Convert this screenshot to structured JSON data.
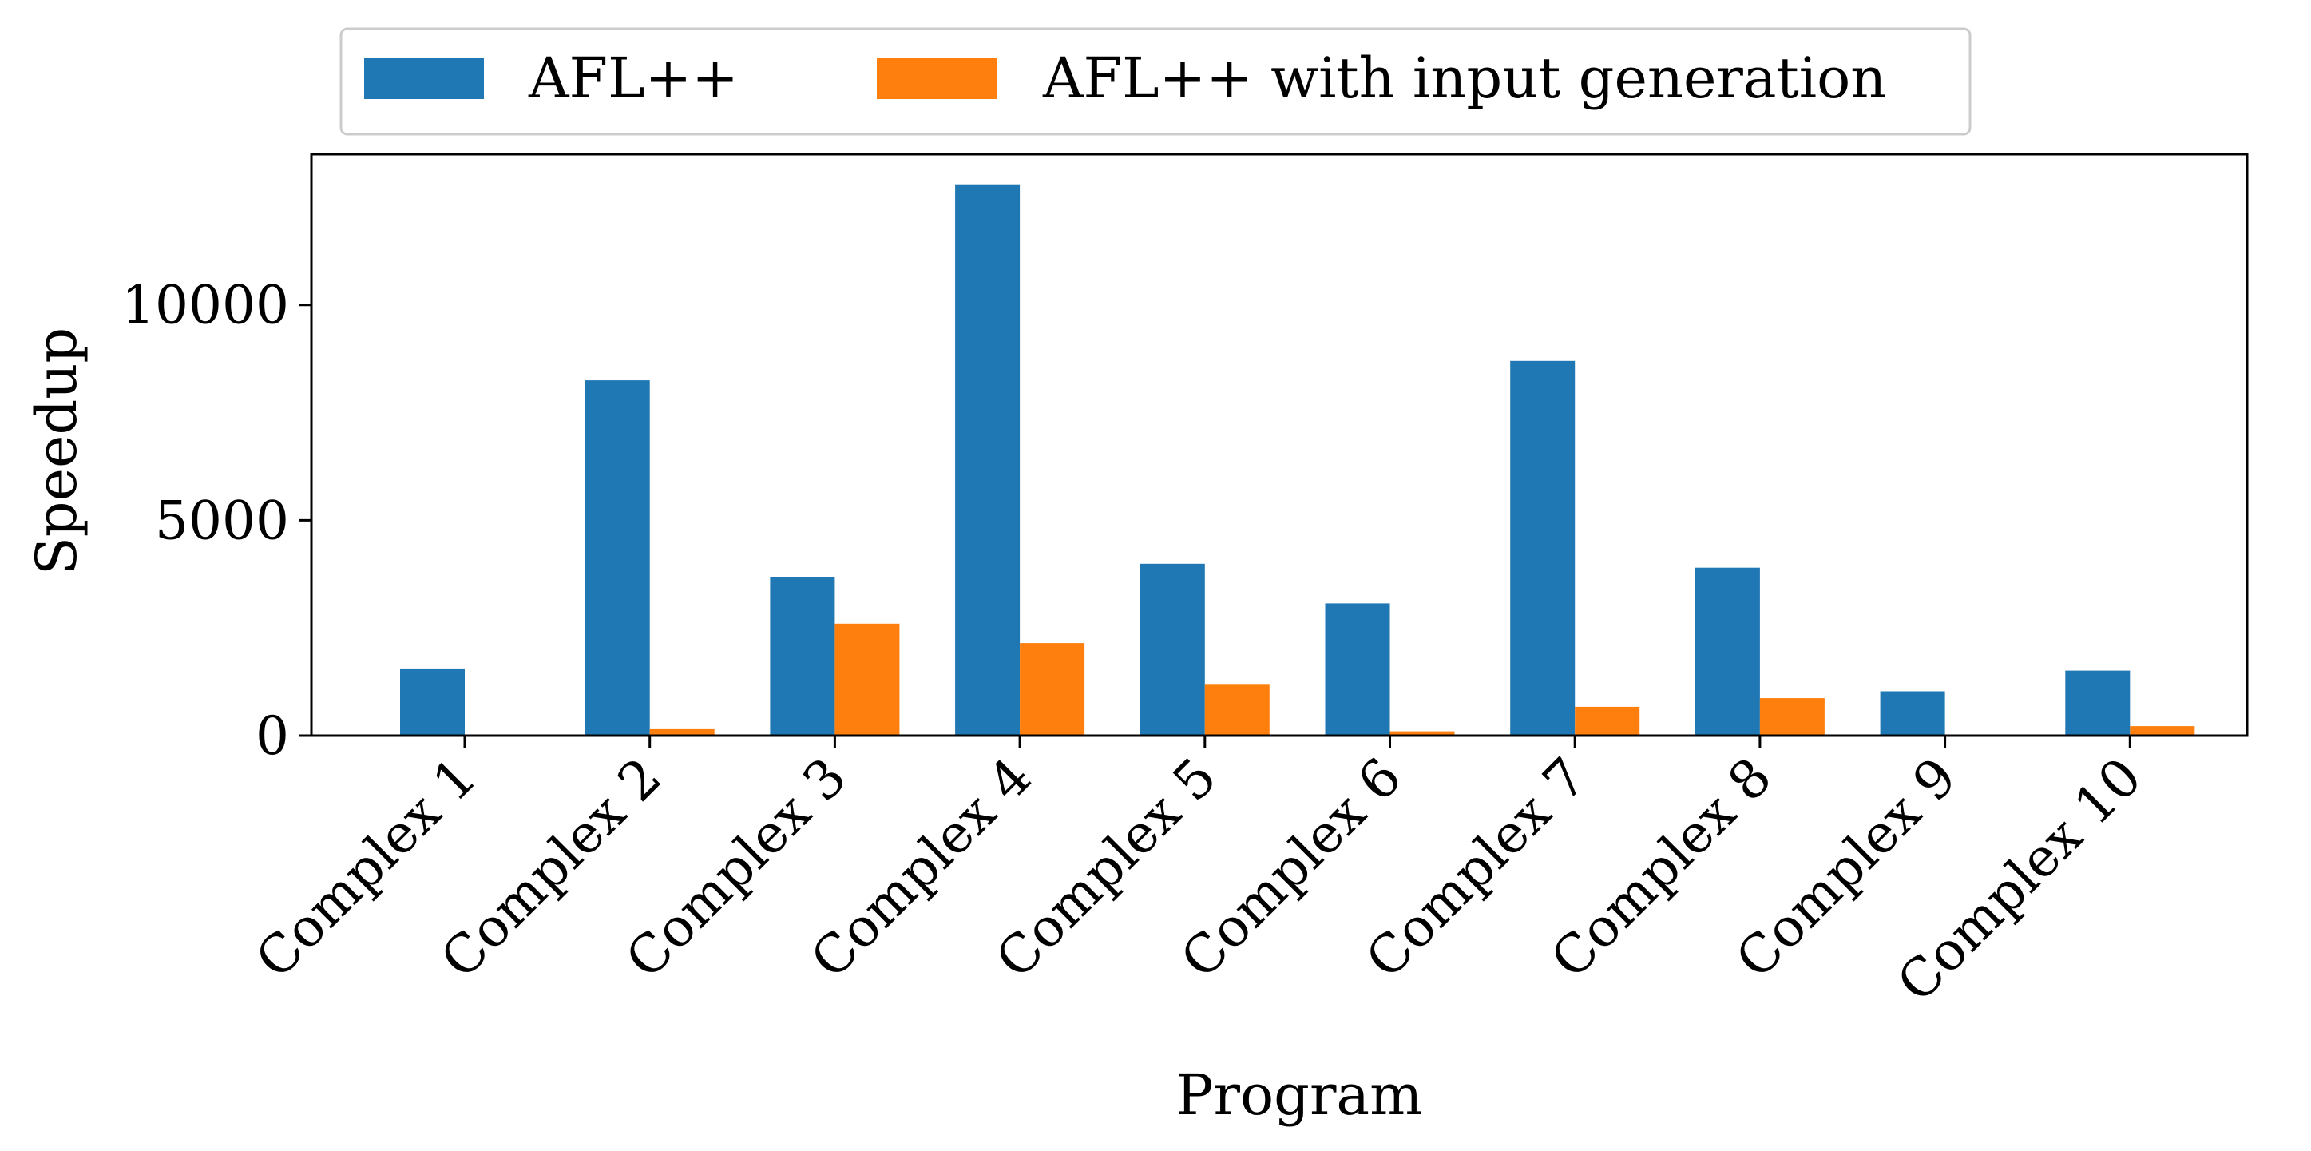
{
  "chart_data": {
    "type": "bar",
    "title": "",
    "xlabel": "Program",
    "ylabel": "Speedup",
    "categories": [
      "Complex 1",
      "Complex 2",
      "Complex 3",
      "Complex 4",
      "Complex 5",
      "Complex 6",
      "Complex 7",
      "Complex 8",
      "Complex 9",
      "Complex 10"
    ],
    "series": [
      {
        "name": "AFL++",
        "color": "#1f77b4",
        "values": [
          1560,
          8250,
          3680,
          12800,
          3990,
          3070,
          8700,
          3900,
          1030,
          1510
        ]
      },
      {
        "name": "AFL++ with input generation",
        "color": "#ff7f0e",
        "values": [
          0,
          150,
          2600,
          2150,
          1200,
          100,
          670,
          870,
          0,
          220
        ]
      }
    ],
    "yticks": [
      0,
      5000,
      10000
    ],
    "ylim": [
      0,
      13500
    ],
    "grid": false,
    "legend": "top-center-outside"
  }
}
